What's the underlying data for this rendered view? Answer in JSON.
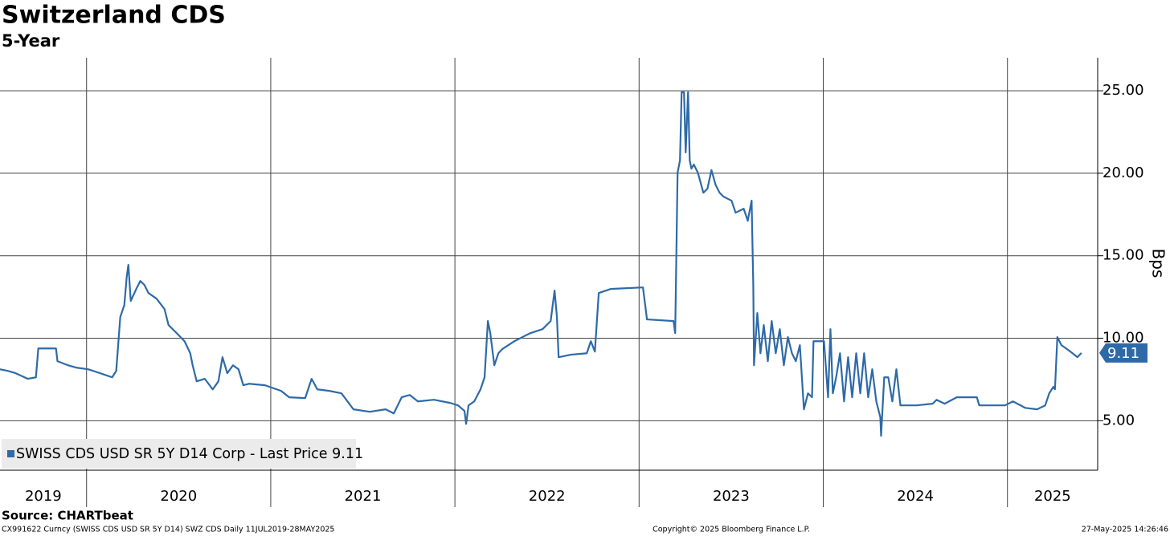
{
  "chart_data": {
    "type": "line",
    "title": "Switzerland CDS",
    "subtitle": "5-Year",
    "ylabel": "Bps",
    "yaxis_position": "right",
    "grid": true,
    "legend_position": "lower left",
    "source": "Source: CHARTbeat",
    "footer_left": "CX991622 Curncy (SWISS CDS USD SR 5Y D14) SWZ CDS  Daily 11JUL2019-28MAY2025",
    "footer_center": "Copyright© 2025 Bloomberg Finance L.P.",
    "footer_right": "27-May-2025 14:26:46",
    "xlim": [
      2019.53,
      2025.49
    ],
    "xticks": [
      2020,
      2021,
      2022,
      2023,
      2024,
      2025
    ],
    "year_labels": [
      "2019",
      "2020",
      "2021",
      "2022",
      "2023",
      "2024",
      "2025"
    ],
    "ylim": [
      2,
      27
    ],
    "yticks": [
      {
        "value": 5,
        "label": "5.00"
      },
      {
        "value": 10,
        "label": "10.00"
      },
      {
        "value": 15,
        "label": "15.00"
      },
      {
        "value": 20,
        "label": "20.00"
      },
      {
        "value": 25,
        "label": "25.00"
      }
    ],
    "last_value_label": "9.11",
    "x": [
      2019.528,
      2019.572,
      2019.615,
      2019.681,
      2019.725,
      2019.738,
      2019.834,
      2019.842,
      2019.899,
      2019.943,
      2020.008,
      2020.074,
      2020.139,
      2020.161,
      2020.183,
      2020.205,
      2020.218,
      2020.227,
      2020.24,
      2020.27,
      2020.292,
      2020.314,
      2020.336,
      2020.38,
      2020.423,
      2020.445,
      2020.489,
      2020.532,
      2020.563,
      2020.576,
      2020.598,
      2020.642,
      2020.685,
      2020.716,
      2020.738,
      2020.764,
      2020.795,
      2020.825,
      2020.851,
      2020.882,
      2020.969,
      2021.056,
      2021.1,
      2021.187,
      2021.222,
      2021.253,
      2021.318,
      2021.384,
      2021.449,
      2021.537,
      2021.624,
      2021.668,
      2021.711,
      2021.755,
      2021.799,
      2021.886,
      2021.974,
      2022.017,
      2022.052,
      2022.061,
      2022.074,
      2022.105,
      2022.139,
      2022.161,
      2022.179,
      2022.192,
      2022.214,
      2022.236,
      2022.257,
      2022.323,
      2022.367,
      2022.41,
      2022.476,
      2022.52,
      2022.541,
      2022.554,
      2022.563,
      2022.629,
      2022.716,
      2022.738,
      2022.76,
      2022.781,
      2022.847,
      2023.021,
      2023.043,
      2023.187,
      2023.196,
      2023.209,
      2023.222,
      2023.231,
      2023.244,
      2023.253,
      2023.266,
      2023.275,
      2023.284,
      2023.297,
      2023.319,
      2023.349,
      2023.371,
      2023.393,
      2023.415,
      2023.437,
      2023.459,
      2023.502,
      2023.524,
      2023.568,
      2023.59,
      2023.611,
      2023.62,
      2023.624,
      2023.642,
      2023.659,
      2023.677,
      2023.699,
      2023.72,
      2023.742,
      2023.764,
      2023.786,
      2023.808,
      2023.83,
      2023.851,
      2023.873,
      2023.895,
      2023.917,
      2023.939,
      2023.947,
      2024.004,
      2024.026,
      2024.039,
      2024.052,
      2024.07,
      2024.091,
      2024.113,
      2024.135,
      2024.157,
      2024.179,
      2024.201,
      2024.222,
      2024.244,
      2024.266,
      2024.288,
      2024.31,
      2024.314,
      2024.331,
      2024.353,
      2024.375,
      2024.397,
      2024.419,
      2024.506,
      2024.594,
      2024.615,
      2024.659,
      2024.725,
      2024.834,
      2024.847,
      2024.987,
      2025.03,
      2025.096,
      2025.161,
      2025.205,
      2025.227,
      2025.249,
      2025.258,
      2025.271,
      2025.293,
      2025.336,
      2025.38,
      2025.402
    ],
    "series": [
      {
        "name": "SWISS CDS USD SR 5Y D14 Corp - Last Price 9.11",
        "color": "#2e6aa8",
        "values": [
          8.12,
          8.02,
          7.88,
          7.54,
          7.63,
          9.38,
          9.38,
          8.61,
          8.36,
          8.22,
          8.12,
          7.88,
          7.63,
          8.02,
          11.28,
          12.01,
          13.72,
          14.45,
          12.26,
          12.99,
          13.47,
          13.23,
          12.74,
          12.4,
          11.77,
          10.8,
          10.31,
          9.82,
          9.09,
          8.36,
          7.39,
          7.54,
          6.9,
          7.39,
          8.85,
          7.88,
          8.36,
          8.12,
          7.15,
          7.24,
          7.15,
          6.81,
          6.42,
          6.37,
          7.54,
          6.9,
          6.81,
          6.66,
          5.69,
          5.54,
          5.69,
          5.44,
          6.42,
          6.56,
          6.17,
          6.27,
          6.08,
          5.93,
          5.59,
          4.81,
          5.93,
          6.17,
          6.9,
          7.63,
          11.04,
          10.31,
          8.36,
          9.09,
          9.34,
          9.82,
          10.07,
          10.31,
          10.55,
          11.04,
          12.89,
          11.28,
          8.85,
          9.0,
          9.09,
          9.82,
          9.19,
          12.74,
          12.99,
          13.08,
          11.14,
          11.04,
          10.31,
          20.04,
          20.77,
          24.91,
          24.91,
          21.26,
          24.91,
          20.77,
          20.28,
          20.53,
          20.04,
          18.82,
          19.06,
          20.19,
          19.31,
          18.82,
          18.58,
          18.34,
          17.61,
          17.85,
          17.12,
          18.34,
          13.23,
          8.36,
          11.53,
          9.09,
          10.8,
          8.61,
          11.04,
          9.09,
          10.55,
          8.36,
          10.07,
          9.09,
          8.61,
          9.58,
          5.69,
          6.66,
          6.42,
          9.82,
          9.82,
          6.42,
          10.55,
          6.66,
          7.63,
          9.09,
          6.17,
          8.85,
          6.42,
          9.09,
          6.66,
          9.09,
          6.42,
          8.12,
          6.17,
          5.2,
          4.08,
          7.63,
          7.63,
          6.17,
          8.12,
          5.93,
          5.93,
          6.03,
          6.27,
          6.03,
          6.42,
          6.42,
          5.93,
          5.93,
          6.17,
          5.78,
          5.69,
          5.93,
          6.66,
          7.05,
          6.9,
          10.07,
          9.58,
          9.24,
          8.85,
          9.11
        ]
      }
    ]
  }
}
